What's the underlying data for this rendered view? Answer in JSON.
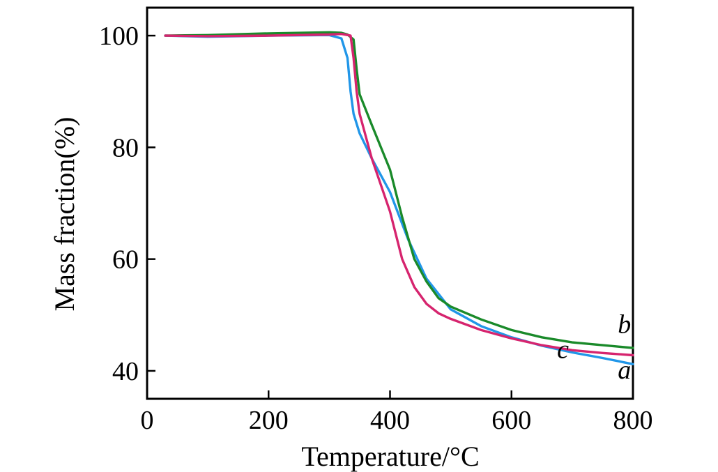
{
  "chart_data": {
    "type": "line",
    "xlabel": "Temperature/°C",
    "ylabel": "Mass fraction(%)",
    "xlim": [
      0,
      800
    ],
    "ylim": [
      35,
      105
    ],
    "xticks": [
      0,
      200,
      400,
      600,
      800
    ],
    "yticks": [
      40,
      60,
      80,
      100
    ],
    "grid": false,
    "series": [
      {
        "name": "a",
        "color": "#2196e8",
        "x": [
          30,
          100,
          200,
          300,
          320,
          330,
          335,
          340,
          350,
          370,
          400,
          430,
          460,
          500,
          550,
          600,
          650,
          700,
          750,
          800
        ],
        "y": [
          100,
          99.8,
          100,
          100.1,
          99.5,
          96,
          90,
          86,
          82.5,
          78,
          72,
          63.5,
          56.5,
          51,
          48,
          46,
          44.5,
          43.3,
          42.3,
          41.2
        ]
      },
      {
        "name": "b",
        "color": "#1a8a2a",
        "x": [
          30,
          100,
          200,
          300,
          320,
          330,
          340,
          345,
          350,
          370,
          400,
          420,
          440,
          460,
          480,
          500,
          550,
          600,
          650,
          700,
          750,
          800
        ],
        "y": [
          100,
          100.1,
          100.4,
          100.6,
          100.5,
          100.2,
          99.3,
          94,
          89.5,
          84,
          76,
          67.5,
          60,
          56,
          53,
          51.5,
          49.2,
          47.3,
          46,
          45.1,
          44.6,
          44.1
        ]
      },
      {
        "name": "c",
        "color": "#d6246e",
        "x": [
          30,
          100,
          200,
          300,
          320,
          335,
          340,
          345,
          350,
          370,
          400,
          420,
          440,
          460,
          480,
          500,
          550,
          600,
          650,
          700,
          750,
          800
        ],
        "y": [
          100,
          99.9,
          100,
          100.2,
          100.3,
          100,
          96,
          90,
          86,
          78,
          68.5,
          60,
          55,
          52,
          50.3,
          49.3,
          47.3,
          45.8,
          44.6,
          43.7,
          43.2,
          42.8
        ]
      }
    ],
    "annotations": [
      {
        "text": "b",
        "x": 775,
        "y": 46.8
      },
      {
        "text": "c",
        "x": 675,
        "y": 42.3
      },
      {
        "text": "a",
        "x": 775,
        "y": 38.6
      }
    ]
  }
}
